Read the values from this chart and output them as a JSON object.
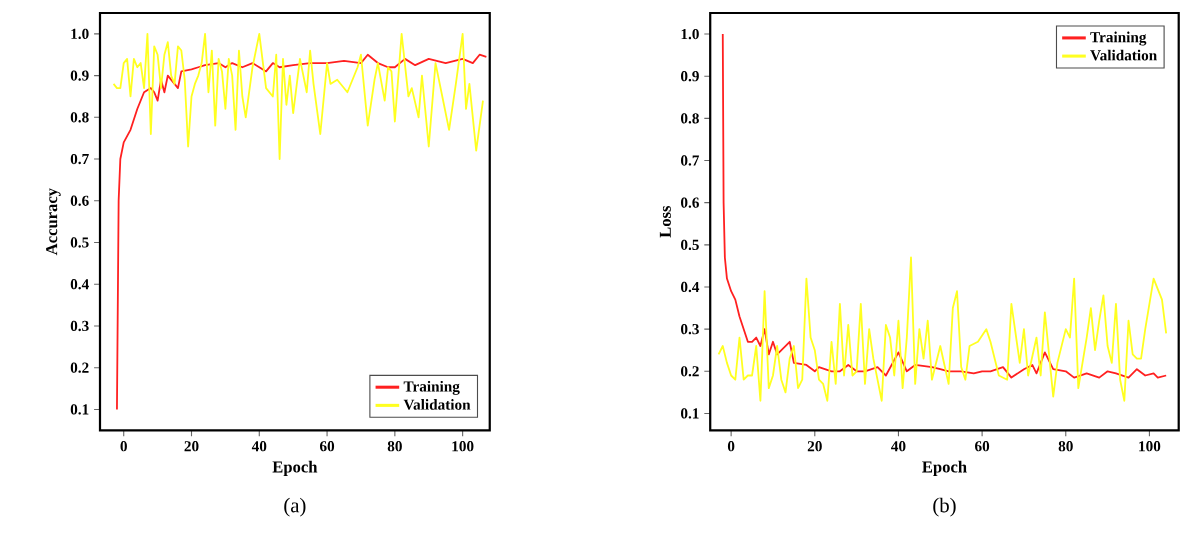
{
  "chart_data": [
    {
      "type": "line",
      "xlabel": "Epoch",
      "ylabel": "Accuracy",
      "annotations": [
        "(a)"
      ],
      "legend": "bottom right",
      "xlim": [
        -7,
        108
      ],
      "ylim": [
        0.05,
        1.05
      ],
      "xticks": [
        0,
        20,
        40,
        60,
        80,
        100
      ],
      "yticks": [
        0.1,
        0.2,
        0.3,
        0.4,
        0.5,
        0.6,
        0.7,
        0.8,
        0.9,
        {
          "value": 1.0,
          "label": "1.0"
        }
      ],
      "series": [
        {
          "name": "Training",
          "color": "#ff2020",
          "x": [
            -2,
            -1.5,
            -1,
            0,
            2,
            4,
            6,
            8,
            9,
            10,
            11,
            12,
            13,
            15,
            16,
            17,
            20,
            22,
            24,
            28,
            30,
            32,
            35,
            38,
            40,
            42,
            44,
            46,
            50,
            55,
            60,
            65,
            70,
            72,
            75,
            78,
            80,
            83,
            86,
            90,
            95,
            100,
            103,
            105,
            107
          ],
          "values": [
            0.1,
            0.6,
            0.7,
            0.74,
            0.77,
            0.82,
            0.86,
            0.87,
            0.86,
            0.84,
            0.89,
            0.86,
            0.9,
            0.88,
            0.87,
            0.91,
            0.915,
            0.92,
            0.925,
            0.93,
            0.92,
            0.93,
            0.92,
            0.93,
            0.92,
            0.91,
            0.93,
            0.92,
            0.925,
            0.93,
            0.93,
            0.935,
            0.93,
            0.95,
            0.93,
            0.92,
            0.92,
            0.94,
            0.925,
            0.94,
            0.93,
            0.94,
            0.93,
            0.95,
            0.945
          ]
        },
        {
          "name": "Validation",
          "color": "#ffff20",
          "x": [
            -3,
            -2,
            -1,
            0,
            1,
            2,
            3,
            4,
            5,
            6,
            7,
            8,
            9,
            10,
            11,
            12,
            13,
            14,
            15,
            16,
            17,
            18,
            19,
            20,
            21,
            22,
            23,
            24,
            25,
            26,
            27,
            28,
            29,
            30,
            31,
            32,
            33,
            34,
            35,
            36,
            38,
            40,
            42,
            44,
            45,
            46,
            47,
            48,
            49,
            50,
            52,
            54,
            55,
            56,
            58,
            60,
            61,
            63,
            66,
            69,
            70,
            72,
            74,
            75,
            77,
            78,
            79,
            80,
            82,
            84,
            85,
            87,
            88,
            90,
            92,
            94,
            96,
            98,
            100,
            101,
            102,
            104,
            106
          ],
          "values": [
            0.88,
            0.87,
            0.87,
            0.93,
            0.94,
            0.85,
            0.94,
            0.92,
            0.93,
            0.87,
            1.0,
            0.76,
            0.97,
            0.95,
            0.87,
            0.95,
            0.98,
            0.9,
            0.88,
            0.97,
            0.96,
            0.89,
            0.73,
            0.85,
            0.88,
            0.9,
            0.93,
            1.0,
            0.86,
            0.96,
            0.78,
            0.94,
            0.91,
            0.82,
            0.94,
            0.9,
            0.77,
            0.96,
            0.85,
            0.8,
            0.92,
            1.0,
            0.87,
            0.85,
            0.95,
            0.7,
            0.94,
            0.83,
            0.9,
            0.81,
            0.94,
            0.86,
            0.96,
            0.88,
            0.76,
            0.93,
            0.88,
            0.89,
            0.86,
            0.92,
            0.95,
            0.78,
            0.89,
            0.93,
            0.84,
            0.92,
            0.91,
            0.79,
            1.0,
            0.85,
            0.87,
            0.8,
            0.9,
            0.73,
            0.93,
            0.85,
            0.77,
            0.88,
            1.0,
            0.82,
            0.88,
            0.72,
            0.84
          ]
        }
      ]
    },
    {
      "type": "line",
      "xlabel": "Epoch",
      "ylabel": "Loss",
      "annotations": [
        "(b)"
      ],
      "legend": "top right",
      "xlim": [
        -5,
        107
      ],
      "ylim": [
        0.06,
        1.05
      ],
      "xticks": [
        0,
        20,
        40,
        60,
        80,
        100
      ],
      "yticks": [
        0.1,
        0.2,
        0.3,
        0.4,
        0.5,
        0.6,
        0.7,
        0.8,
        0.9,
        {
          "value": 1.0,
          "label": "1.0"
        }
      ],
      "series": [
        {
          "name": "Training",
          "color": "#ff2020",
          "x": [
            -2,
            -1.8,
            -1.5,
            -1,
            0,
            1,
            2,
            3,
            4,
            5,
            6,
            7,
            8,
            9,
            10,
            11,
            13,
            14,
            15,
            18,
            20,
            21,
            24,
            26,
            28,
            30,
            32,
            35,
            37,
            40,
            42,
            44,
            48,
            50,
            52,
            55,
            58,
            60,
            62,
            65,
            67,
            70,
            72,
            73,
            75,
            77,
            80,
            82,
            85,
            88,
            90,
            92,
            95,
            97,
            99,
            101,
            102,
            104
          ],
          "values": [
            1.0,
            0.6,
            0.47,
            0.42,
            0.39,
            0.37,
            0.33,
            0.3,
            0.27,
            0.27,
            0.28,
            0.26,
            0.3,
            0.24,
            0.27,
            0.24,
            0.26,
            0.27,
            0.22,
            0.215,
            0.2,
            0.21,
            0.2,
            0.2,
            0.215,
            0.2,
            0.2,
            0.21,
            0.19,
            0.245,
            0.2,
            0.215,
            0.21,
            0.205,
            0.2,
            0.2,
            0.195,
            0.2,
            0.2,
            0.21,
            0.185,
            0.205,
            0.215,
            0.195,
            0.245,
            0.205,
            0.2,
            0.185,
            0.195,
            0.185,
            0.2,
            0.195,
            0.185,
            0.205,
            0.19,
            0.195,
            0.185,
            0.19
          ]
        },
        {
          "name": "Validation",
          "color": "#ffff20",
          "x": [
            -3,
            -2,
            -1,
            0,
            1,
            2,
            3,
            4,
            5,
            6,
            7,
            8,
            9,
            10,
            11,
            12,
            13,
            14,
            15,
            16,
            17,
            18,
            19,
            20,
            21,
            22,
            23,
            24,
            25,
            26,
            27,
            28,
            29,
            30,
            31,
            32,
            33,
            34,
            36,
            37,
            38,
            39,
            40,
            41,
            42,
            43,
            44,
            45,
            46,
            47,
            48,
            50,
            52,
            53,
            54,
            55,
            56,
            57,
            59,
            61,
            62,
            64,
            66,
            67,
            69,
            70,
            71,
            73,
            74,
            75,
            77,
            78,
            80,
            81,
            82,
            83,
            85,
            86,
            87,
            88,
            89,
            90,
            91,
            92,
            93,
            94,
            95,
            96,
            97,
            98,
            99,
            101,
            103,
            104
          ],
          "values": [
            0.24,
            0.26,
            0.22,
            0.19,
            0.18,
            0.28,
            0.18,
            0.19,
            0.19,
            0.26,
            0.13,
            0.39,
            0.16,
            0.19,
            0.26,
            0.18,
            0.15,
            0.23,
            0.26,
            0.16,
            0.18,
            0.42,
            0.28,
            0.25,
            0.18,
            0.17,
            0.13,
            0.27,
            0.17,
            0.36,
            0.19,
            0.31,
            0.19,
            0.2,
            0.36,
            0.17,
            0.3,
            0.23,
            0.13,
            0.31,
            0.28,
            0.19,
            0.32,
            0.16,
            0.28,
            0.47,
            0.17,
            0.3,
            0.23,
            0.32,
            0.18,
            0.26,
            0.17,
            0.35,
            0.39,
            0.21,
            0.18,
            0.26,
            0.27,
            0.3,
            0.27,
            0.19,
            0.18,
            0.36,
            0.22,
            0.3,
            0.19,
            0.28,
            0.19,
            0.34,
            0.14,
            0.22,
            0.3,
            0.28,
            0.42,
            0.16,
            0.28,
            0.35,
            0.25,
            0.32,
            0.38,
            0.26,
            0.22,
            0.36,
            0.18,
            0.13,
            0.32,
            0.24,
            0.23,
            0.23,
            0.3,
            0.42,
            0.37,
            0.29
          ]
        }
      ]
    }
  ]
}
